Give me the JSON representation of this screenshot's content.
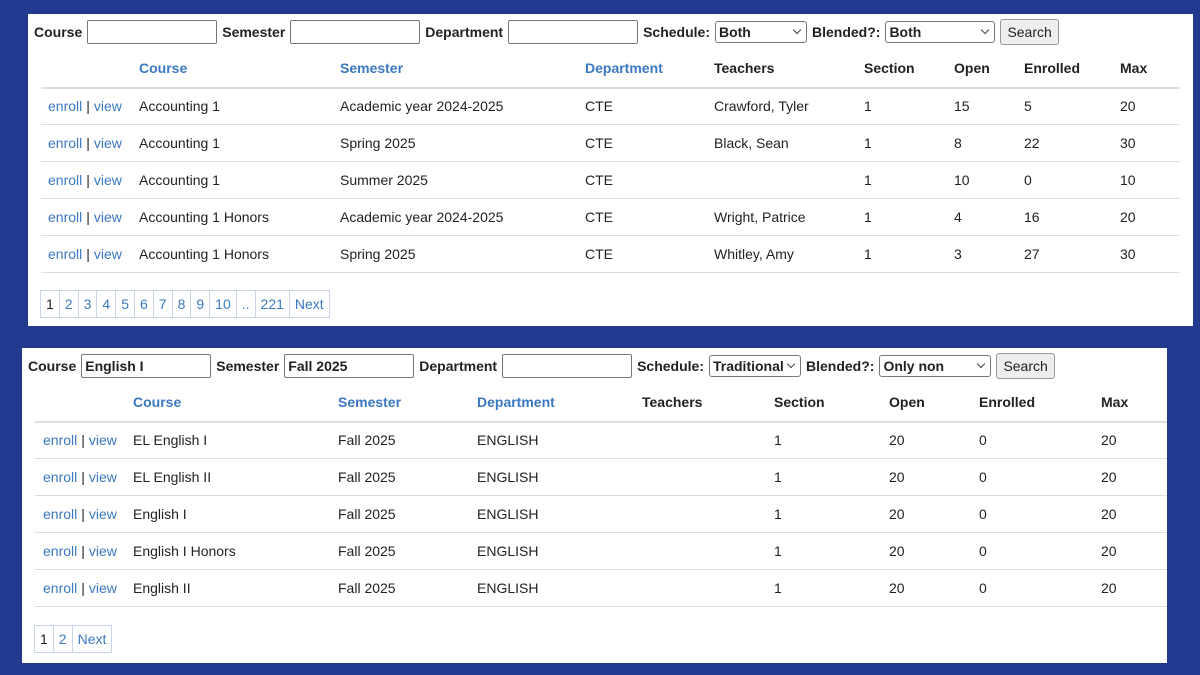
{
  "panels": [
    {
      "filters": [
        {
          "label": "Course"
        },
        {
          "label": "Semester"
        },
        {
          "label": "Department"
        },
        {
          "label": "Schedule:",
          "value": "Both"
        },
        {
          "label": "Blended?:",
          "value": "Both"
        }
      ],
      "button": "Search",
      "headers": [
        "Course",
        "Semester",
        "Department",
        "Teachers",
        "Section",
        "Open",
        "Enrolled",
        "Max"
      ],
      "actions": [
        "enroll",
        "view"
      ],
      "separator": "|",
      "rows": [
        [
          "Accounting 1",
          "Academic year 2024-2025",
          "CTE",
          "Crawford, Tyler",
          1,
          15,
          5,
          20
        ],
        [
          "Accounting 1",
          "Spring 2025",
          "CTE",
          "Black, Sean",
          1,
          8,
          22,
          30
        ],
        [
          "Accounting 1",
          "Summer 2025",
          "CTE",
          null,
          1,
          10,
          0,
          10
        ],
        [
          "Accounting 1 Honors",
          "Academic year 2024-2025",
          "CTE",
          "Wright, Patrice",
          1,
          4,
          16,
          20
        ],
        [
          "Accounting 1 Honors",
          "Spring 2025",
          "CTE",
          "Whitley, Amy",
          1,
          3,
          27,
          30
        ]
      ],
      "pages": [
        1,
        2,
        3,
        4,
        5,
        6,
        7,
        8,
        9,
        10,
        "..",
        221
      ],
      "next": "Next"
    },
    {
      "filters": [
        {
          "label": "Course",
          "value": "English I"
        },
        {
          "label": "Semester",
          "value": "Fall 2025"
        },
        {
          "label": "Department"
        },
        {
          "label": "Schedule:",
          "value": "Traditional"
        },
        {
          "label": "Blended?:",
          "value": "Only non"
        }
      ],
      "button": "Search",
      "headers": [
        "Course",
        "Semester",
        "Department",
        "Teachers",
        "Section",
        "Open",
        "Enrolled",
        "Max"
      ],
      "actions": [
        "enroll",
        "view"
      ],
      "separator": "|",
      "rows": [
        [
          "EL English I",
          "Fall 2025",
          "ENGLISH",
          null,
          1,
          20,
          0,
          20
        ],
        [
          "EL English II",
          "Fall 2025",
          "ENGLISH",
          null,
          1,
          20,
          0,
          20
        ],
        [
          "English I",
          "Fall 2025",
          "ENGLISH",
          null,
          1,
          20,
          0,
          20
        ],
        [
          "English I Honors",
          "Fall 2025",
          "ENGLISH",
          null,
          1,
          20,
          0,
          20
        ],
        [
          "English II",
          "Fall 2025",
          "ENGLISH",
          null,
          1,
          20,
          0,
          20
        ]
      ],
      "pages": [
        1,
        2
      ],
      "next": "Next"
    }
  ]
}
